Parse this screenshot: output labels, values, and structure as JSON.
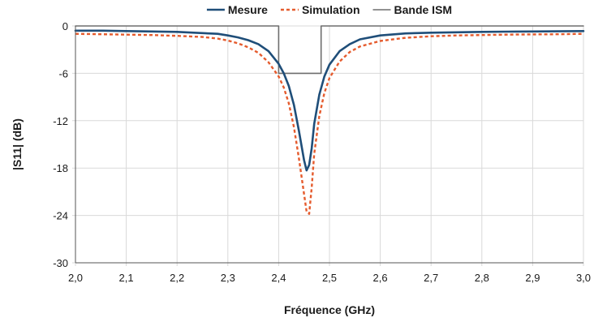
{
  "chart_data": {
    "type": "line",
    "title": "",
    "xlabel": "Fréquence (GHz)",
    "ylabel": "|S11| (dB)",
    "xlim": [
      2.0,
      3.0
    ],
    "ylim": [
      -30,
      0
    ],
    "x_ticks": [
      "2,0",
      "2,1",
      "2,2",
      "2,3",
      "2,4",
      "2,5",
      "2,6",
      "2,7",
      "2,8",
      "2,9",
      "3,0"
    ],
    "y_ticks": [
      "0",
      "-6",
      "-12",
      "-18",
      "-24",
      "-30"
    ],
    "grid": true,
    "legend_position": "top",
    "series": [
      {
        "name": "Mesure",
        "color": "#1f4e79",
        "style": "solid",
        "x": [
          2.0,
          2.05,
          2.1,
          2.15,
          2.2,
          2.25,
          2.28,
          2.3,
          2.32,
          2.34,
          2.36,
          2.38,
          2.4,
          2.41,
          2.42,
          2.43,
          2.44,
          2.45,
          2.455,
          2.46,
          2.465,
          2.47,
          2.48,
          2.49,
          2.5,
          2.52,
          2.54,
          2.56,
          2.6,
          2.65,
          2.7,
          2.75,
          2.8,
          2.85,
          2.9,
          2.95,
          3.0
        ],
        "y": [
          -0.6,
          -0.6,
          -0.65,
          -0.7,
          -0.75,
          -0.9,
          -1.0,
          -1.2,
          -1.45,
          -1.8,
          -2.3,
          -3.2,
          -4.8,
          -6.0,
          -7.6,
          -10.0,
          -13.3,
          -17.0,
          -18.3,
          -17.6,
          -15.5,
          -12.4,
          -8.7,
          -6.4,
          -4.9,
          -3.2,
          -2.3,
          -1.7,
          -1.2,
          -0.95,
          -0.85,
          -0.8,
          -0.75,
          -0.72,
          -0.7,
          -0.68,
          -0.65
        ]
      },
      {
        "name": "Simulation",
        "color": "#e55b2d",
        "style": "dashed",
        "x": [
          2.0,
          2.05,
          2.1,
          2.15,
          2.2,
          2.25,
          2.28,
          2.3,
          2.32,
          2.34,
          2.36,
          2.38,
          2.4,
          2.41,
          2.42,
          2.43,
          2.44,
          2.45,
          2.455,
          2.46,
          2.465,
          2.47,
          2.48,
          2.49,
          2.5,
          2.52,
          2.54,
          2.56,
          2.6,
          2.65,
          2.7,
          2.75,
          2.8,
          2.85,
          2.9,
          2.95,
          3.0
        ],
        "y": [
          -1.0,
          -1.05,
          -1.1,
          -1.15,
          -1.25,
          -1.4,
          -1.6,
          -1.85,
          -2.2,
          -2.7,
          -3.4,
          -4.6,
          -6.4,
          -7.8,
          -9.8,
          -12.8,
          -16.8,
          -21.3,
          -23.5,
          -23.8,
          -20.5,
          -16.2,
          -11.4,
          -8.5,
          -6.6,
          -4.5,
          -3.3,
          -2.6,
          -1.9,
          -1.5,
          -1.3,
          -1.2,
          -1.15,
          -1.1,
          -1.07,
          -1.05,
          -1.0
        ]
      },
      {
        "name": "Bande ISM",
        "color": "#6e6e6e",
        "style": "solid",
        "x": [
          2.0,
          2.4,
          2.4,
          2.4835,
          2.4835,
          3.0
        ],
        "y": [
          0,
          0,
          -6,
          -6,
          0,
          0
        ]
      }
    ]
  }
}
